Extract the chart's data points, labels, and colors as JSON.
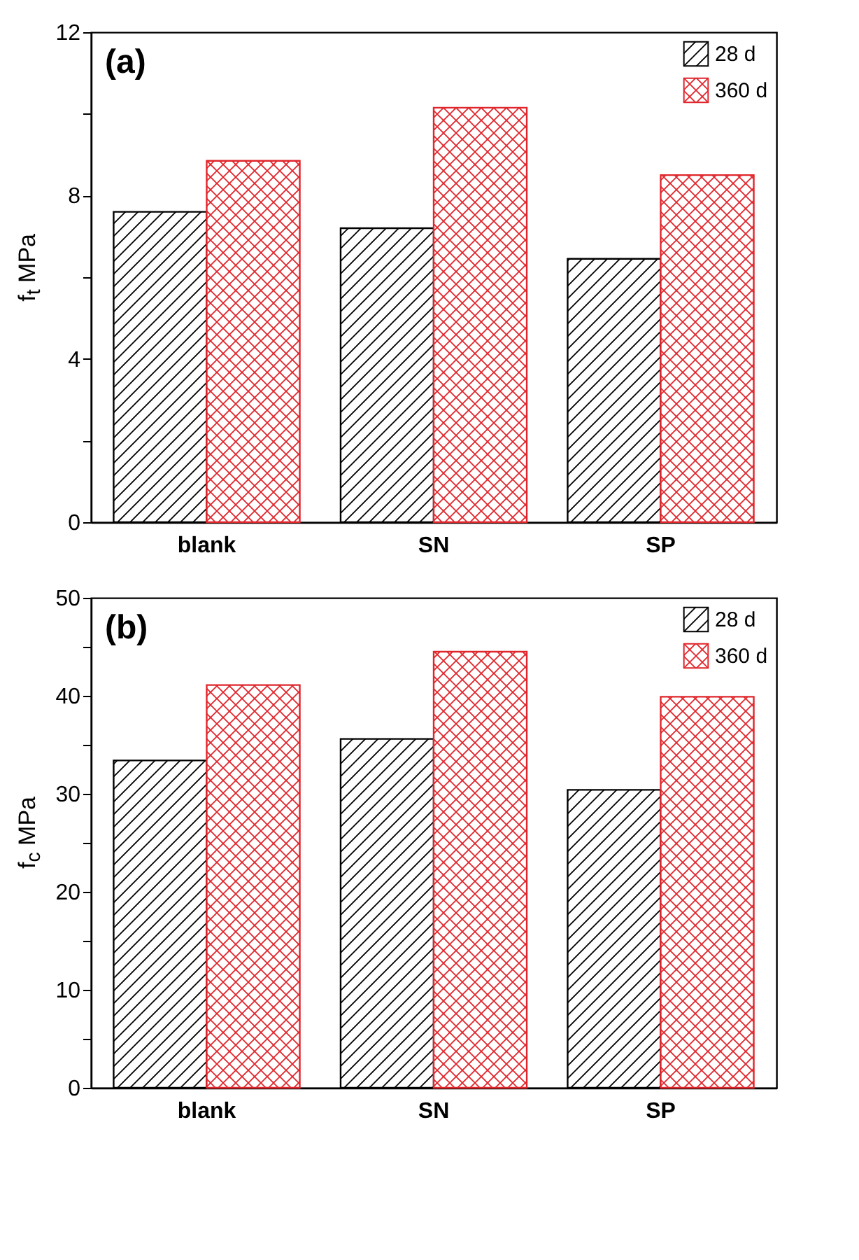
{
  "chart_data": [
    {
      "type": "bar",
      "title": "(a)",
      "ylabel": "f$_{t}$ MPa",
      "categories": [
        "blank",
        "SN",
        "SP"
      ],
      "series": [
        {
          "name": "28 d",
          "color": "#000000",
          "values": [
            7.6,
            7.2,
            6.45
          ]
        },
        {
          "name": "360 d",
          "color": "#e0262c",
          "values": [
            8.85,
            10.15,
            8.5
          ]
        }
      ],
      "ylim": [
        0,
        12
      ],
      "yticks": [
        0,
        {
          "value": 2,
          "label": null
        },
        4,
        {
          "value": 6,
          "label": null
        },
        8,
        {
          "value": 10,
          "label": null
        },
        12
      ],
      "grid": false,
      "legend": "top right"
    },
    {
      "type": "bar",
      "title": "(b)",
      "ylabel": "f$_{c}$ MPa",
      "categories": [
        "blank",
        "SN",
        "SP"
      ],
      "series": [
        {
          "name": "28 d",
          "color": "#000000",
          "values": [
            33.4,
            35.6,
            30.4
          ]
        },
        {
          "name": "360 d",
          "color": "#e0262c",
          "values": [
            41.1,
            44.5,
            39.9
          ]
        }
      ],
      "ylim": [
        0,
        50
      ],
      "yticks": [
        0,
        {
          "value": 5,
          "label": null
        },
        10,
        {
          "value": 15,
          "label": null
        },
        20,
        {
          "value": 25,
          "label": null
        },
        30,
        {
          "value": 35,
          "label": null
        },
        40,
        {
          "value": 45,
          "label": null
        },
        50
      ],
      "grid": false,
      "legend": "top right"
    }
  ]
}
